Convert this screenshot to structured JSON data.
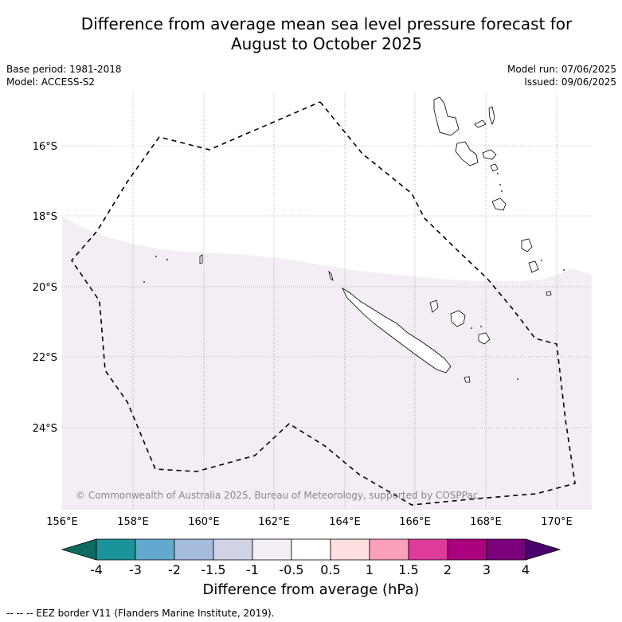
{
  "header": {
    "title_line1": "Difference from average mean sea level pressure forecast for",
    "title_line2": "August to October 2025"
  },
  "meta": {
    "base_period": "Base period: 1981-2018",
    "model": "Model: ACCESS-S2",
    "model_run": "Model run: 07/06/2025",
    "issued": "Issued: 09/06/2025"
  },
  "map": {
    "lat_labels": [
      "16°S",
      "18°S",
      "20°S",
      "22°S",
      "24°S"
    ],
    "lon_labels": [
      "156°E",
      "158°E",
      "160°E",
      "162°E",
      "164°E",
      "166°E",
      "168°E",
      "170°E"
    ],
    "copyright": "© Commonwealth of Australia 2025, Bureau of Meteorology, supported by COSPPac",
    "anomaly_fill_color": "#f4edf5",
    "eez_line_color": "#000000"
  },
  "colorbar": {
    "labels": [
      "-4",
      "-3",
      "-2",
      "-1.5",
      "-1",
      "-0.5",
      "0.5",
      "1",
      "1.5",
      "2",
      "3",
      "4"
    ],
    "colors": [
      "#0e6b62",
      "#1b9499",
      "#63a8cf",
      "#a6bcdd",
      "#d0d2e6",
      "#f4edf5",
      "#ffffff",
      "#fedfdf",
      "#fba0ba",
      "#df3b9a",
      "#ac017e",
      "#7a017a",
      "#49006a"
    ],
    "title": "Difference from average (hPa)"
  },
  "footer": {
    "legend": "--  --  -- EEZ border V11 (Flanders Marine Institute, 2019)."
  }
}
